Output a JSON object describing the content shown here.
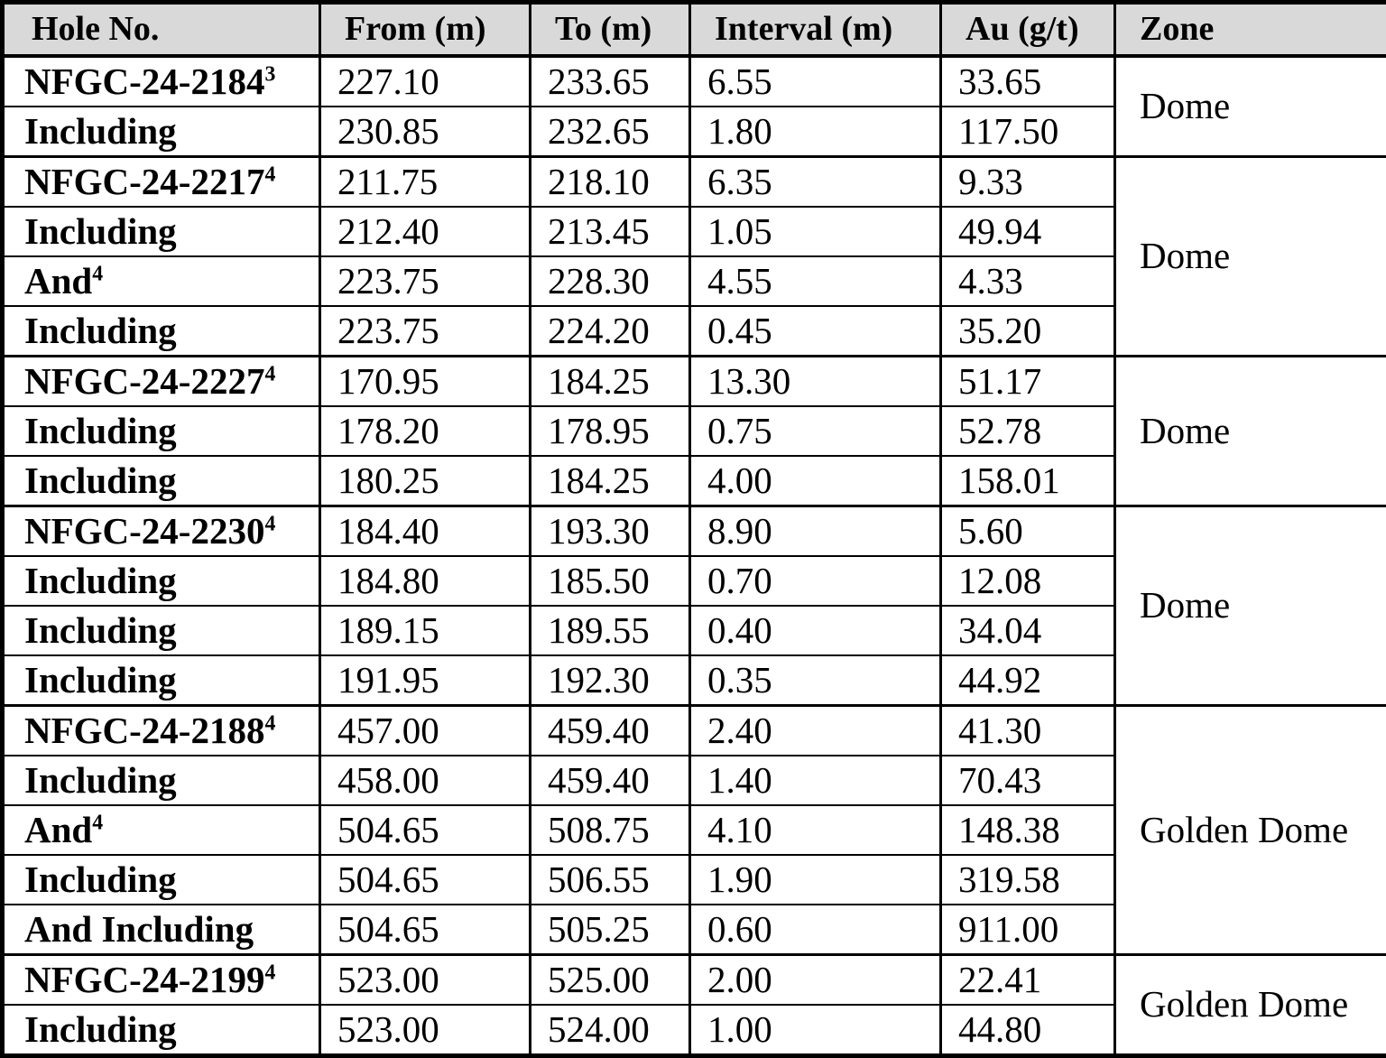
{
  "colors": {
    "header_bg": "#d9d9d9",
    "border": "#000000",
    "text": "#000000"
  },
  "table": {
    "columns": [
      {
        "label": "Hole No."
      },
      {
        "label": "From (m)"
      },
      {
        "label": "To (m)"
      },
      {
        "label": "Interval (m)"
      },
      {
        "label": "Au (g/t)"
      },
      {
        "label": "Zone"
      }
    ],
    "groups": [
      {
        "zone": "Dome",
        "zone_divider": false,
        "rows": [
          {
            "hole": "NFGC-24-2184",
            "sup": "3",
            "from": "227.10",
            "to": "233.65",
            "interval": "6.55",
            "au": "33.65"
          },
          {
            "hole": "Including",
            "sup": "",
            "from": "230.85",
            "to": "232.65",
            "interval": "1.80",
            "au": "117.50"
          }
        ]
      },
      {
        "zone": "Dome",
        "zone_divider": false,
        "rows": [
          {
            "hole": "NFGC-24-2217",
            "sup": "4",
            "from": "211.75",
            "to": "218.10",
            "interval": "6.35",
            "au": "9.33"
          },
          {
            "hole": "Including",
            "sup": "",
            "from": "212.40",
            "to": "213.45",
            "interval": "1.05",
            "au": "49.94"
          },
          {
            "hole": "And",
            "sup": "4",
            "from": "223.75",
            "to": "228.30",
            "interval": "4.55",
            "au": "4.33"
          },
          {
            "hole": "Including",
            "sup": "",
            "from": "223.75",
            "to": "224.20",
            "interval": "0.45",
            "au": "35.20"
          }
        ]
      },
      {
        "zone": "Dome",
        "zone_divider": false,
        "rows": [
          {
            "hole": "NFGC-24-2227",
            "sup": "4",
            "from": "170.95",
            "to": "184.25",
            "interval": "13.30",
            "au": "51.17"
          },
          {
            "hole": "Including",
            "sup": "",
            "from": "178.20",
            "to": "178.95",
            "interval": "0.75",
            "au": "52.78"
          },
          {
            "hole": "Including",
            "sup": "",
            "from": "180.25",
            "to": "184.25",
            "interval": "4.00",
            "au": "158.01"
          }
        ]
      },
      {
        "zone": "Dome",
        "zone_divider": false,
        "rows": [
          {
            "hole": "NFGC-24-2230",
            "sup": "4",
            "from": "184.40",
            "to": "193.30",
            "interval": "8.90",
            "au": "5.60"
          },
          {
            "hole": "Including",
            "sup": "",
            "from": "184.80",
            "to": "185.50",
            "interval": "0.70",
            "au": "12.08"
          },
          {
            "hole": "Including",
            "sup": "",
            "from": "189.15",
            "to": "189.55",
            "interval": "0.40",
            "au": "34.04"
          },
          {
            "hole": "Including",
            "sup": "",
            "from": "191.95",
            "to": "192.30",
            "interval": "0.35",
            "au": "44.92"
          }
        ]
      },
      {
        "zone": "Golden Dome",
        "zone_divider": false,
        "rows": [
          {
            "hole": "NFGC-24-2188",
            "sup": "4",
            "from": "457.00",
            "to": "459.40",
            "interval": "2.40",
            "au": "41.30"
          },
          {
            "hole": "Including",
            "sup": "",
            "from": "458.00",
            "to": "459.40",
            "interval": "1.40",
            "au": "70.43"
          },
          {
            "hole": "And",
            "sup": "4",
            "from": "504.65",
            "to": "508.75",
            "interval": "4.10",
            "au": "148.38"
          },
          {
            "hole": "Including",
            "sup": "",
            "from": "504.65",
            "to": "506.55",
            "interval": "1.90",
            "au": "319.58"
          },
          {
            "hole": "And Including",
            "sup": "",
            "from": "504.65",
            "to": "505.25",
            "interval": "0.60",
            "au": "911.00"
          }
        ]
      },
      {
        "zone": "Golden Dome",
        "zone_divider": true,
        "rows": [
          {
            "hole": "NFGC-24-2199",
            "sup": "4",
            "from": "523.00",
            "to": "525.00",
            "interval": "2.00",
            "au": "22.41"
          },
          {
            "hole": "Including",
            "sup": "",
            "from": "523.00",
            "to": "524.00",
            "interval": "1.00",
            "au": "44.80"
          }
        ]
      }
    ]
  }
}
